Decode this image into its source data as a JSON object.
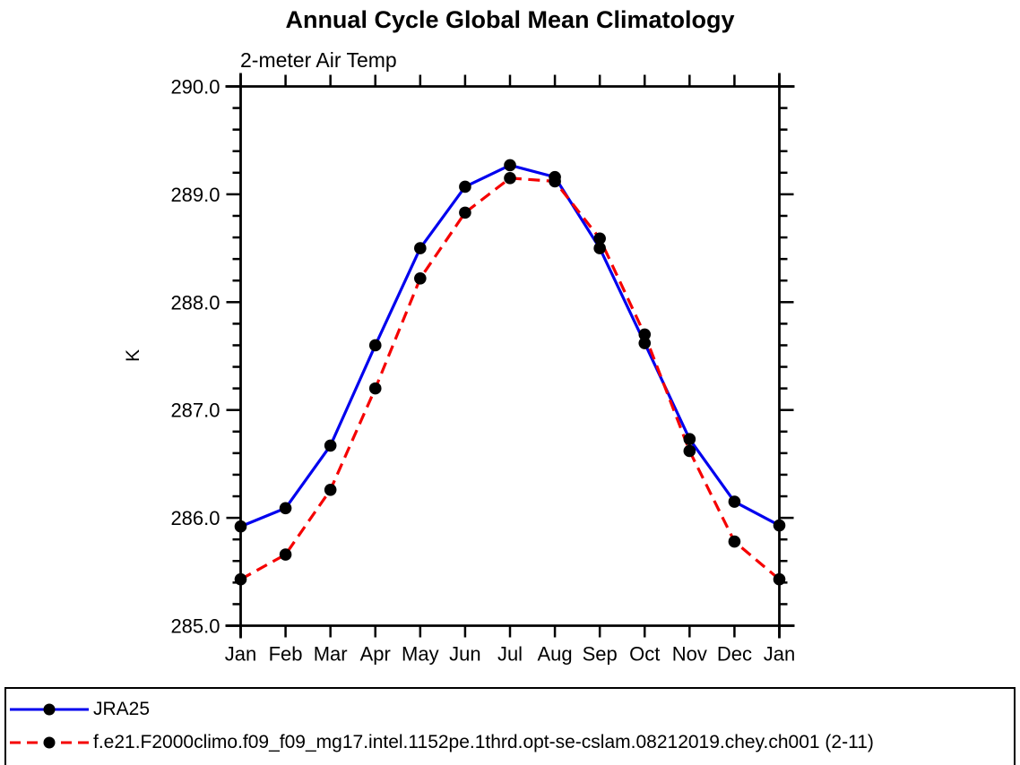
{
  "chart_data": {
    "type": "line",
    "title": "Annual Cycle Global Mean Climatology",
    "subtitle": "2-meter Air Temp",
    "ylabel": "K",
    "xlabel": "",
    "categories": [
      "Jan",
      "Feb",
      "Mar",
      "Apr",
      "May",
      "Jun",
      "Jul",
      "Aug",
      "Sep",
      "Oct",
      "Nov",
      "Dec",
      "Jan"
    ],
    "ylim": [
      285.0,
      290.0
    ],
    "ytick_major": [
      285.0,
      286.0,
      287.0,
      288.0,
      289.0,
      290.0
    ],
    "ytick_labels": [
      "285.0",
      "286.0",
      "287.0",
      "288.0",
      "289.0",
      "290.0"
    ],
    "ytick_minor_step": 0.2,
    "grid": false,
    "legend_position": "bottom",
    "marker": "filled-circle",
    "marker_color": "#000000",
    "series": [
      {
        "name": "JRA25",
        "color": "#0000ee",
        "line_style": "solid",
        "values": [
          285.92,
          286.09,
          286.67,
          287.6,
          288.5,
          289.07,
          289.27,
          289.16,
          288.5,
          287.62,
          286.73,
          286.15,
          285.93
        ]
      },
      {
        "name": "f.e21.F2000climo.f09_f09_mg17.intel.1152pe.1thrd.opt-se-cslam.08212019.chey.ch001 (2-11)",
        "color": "#f50000",
        "line_style": "dashed",
        "values": [
          285.43,
          285.66,
          286.26,
          287.2,
          288.22,
          288.83,
          289.15,
          289.12,
          288.59,
          287.7,
          286.62,
          285.78,
          285.43
        ]
      }
    ]
  }
}
